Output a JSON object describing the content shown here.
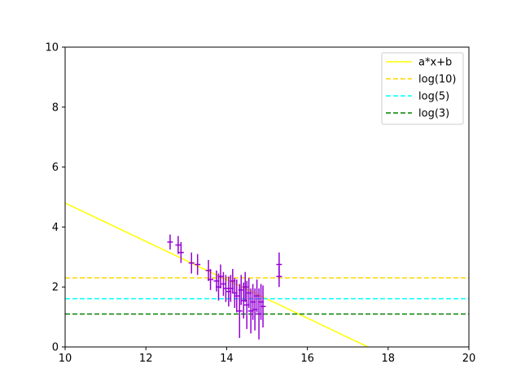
{
  "chart_data": {
    "type": "scatter",
    "xlim": [
      10,
      20
    ],
    "ylim": [
      0,
      10
    ],
    "x_ticks": [
      10,
      12,
      14,
      16,
      18,
      20
    ],
    "y_ticks": [
      0,
      2,
      4,
      6,
      8,
      10
    ],
    "grid": false,
    "legend_position": "top-right",
    "colors": {
      "points": "#9400d3",
      "fit": "#ffff00",
      "log10": "#ffd700",
      "log5": "#00ffff",
      "log3": "#008000"
    },
    "legend": [
      {
        "key": "fit",
        "label": "a*x+b",
        "style": "solid"
      },
      {
        "key": "log10",
        "label": "log(10)",
        "style": "dashed"
      },
      {
        "key": "log5",
        "label": "log(5)",
        "style": "dashed"
      },
      {
        "key": "log3",
        "label": "log(3)",
        "style": "dashed"
      }
    ],
    "fit_line": {
      "slope": -0.64,
      "intercept": 11.2
    },
    "hlines": [
      {
        "key": "log10",
        "y": 2.3026
      },
      {
        "key": "log5",
        "y": 1.6094
      },
      {
        "key": "log3",
        "y": 1.0986
      }
    ],
    "points": [
      {
        "x": 12.6,
        "y": 3.5,
        "xerr": 0.07,
        "yerr": 0.25
      },
      {
        "x": 12.8,
        "y": 3.4,
        "xerr": 0.07,
        "yerr": 0.3
      },
      {
        "x": 12.87,
        "y": 3.15,
        "xerr": 0.07,
        "yerr": 0.35
      },
      {
        "x": 13.13,
        "y": 2.8,
        "xerr": 0.07,
        "yerr": 0.35
      },
      {
        "x": 13.28,
        "y": 2.75,
        "xerr": 0.07,
        "yerr": 0.35
      },
      {
        "x": 13.55,
        "y": 2.55,
        "xerr": 0.07,
        "yerr": 0.35
      },
      {
        "x": 13.6,
        "y": 2.25,
        "xerr": 0.07,
        "yerr": 0.35
      },
      {
        "x": 13.75,
        "y": 2.2,
        "xerr": 0.07,
        "yerr": 0.35
      },
      {
        "x": 13.8,
        "y": 2.0,
        "xerr": 0.07,
        "yerr": 0.45
      },
      {
        "x": 13.85,
        "y": 2.35,
        "xerr": 0.07,
        "yerr": 0.4
      },
      {
        "x": 13.92,
        "y": 2.1,
        "xerr": 0.07,
        "yerr": 0.4
      },
      {
        "x": 13.98,
        "y": 1.95,
        "xerr": 0.07,
        "yerr": 0.45
      },
      {
        "x": 14.05,
        "y": 1.85,
        "xerr": 0.07,
        "yerr": 0.5
      },
      {
        "x": 14.1,
        "y": 1.95,
        "xerr": 0.07,
        "yerr": 0.45
      },
      {
        "x": 14.15,
        "y": 2.2,
        "xerr": 0.07,
        "yerr": 0.4
      },
      {
        "x": 14.2,
        "y": 1.8,
        "xerr": 0.07,
        "yerr": 0.5
      },
      {
        "x": 14.25,
        "y": 1.7,
        "xerr": 0.07,
        "yerr": 0.55
      },
      {
        "x": 14.32,
        "y": 1.2,
        "xerr": 0.07,
        "yerr": 0.9
      },
      {
        "x": 14.36,
        "y": 1.9,
        "xerr": 0.07,
        "yerr": 0.5
      },
      {
        "x": 14.42,
        "y": 1.55,
        "xerr": 0.07,
        "yerr": 0.6
      },
      {
        "x": 14.46,
        "y": 2.0,
        "xerr": 0.07,
        "yerr": 0.5
      },
      {
        "x": 14.5,
        "y": 1.4,
        "xerr": 0.07,
        "yerr": 0.8
      },
      {
        "x": 14.55,
        "y": 1.8,
        "xerr": 0.07,
        "yerr": 0.5
      },
      {
        "x": 14.6,
        "y": 1.2,
        "xerr": 0.07,
        "yerr": 0.75
      },
      {
        "x": 14.65,
        "y": 1.5,
        "xerr": 0.07,
        "yerr": 0.6
      },
      {
        "x": 14.7,
        "y": 1.25,
        "xerr": 0.07,
        "yerr": 0.7
      },
      {
        "x": 14.75,
        "y": 1.7,
        "xerr": 0.07,
        "yerr": 0.55
      },
      {
        "x": 14.8,
        "y": 1.1,
        "xerr": 0.07,
        "yerr": 0.85
      },
      {
        "x": 14.85,
        "y": 1.5,
        "xerr": 0.07,
        "yerr": 0.6
      },
      {
        "x": 14.9,
        "y": 1.35,
        "xerr": 0.07,
        "yerr": 0.7
      },
      {
        "x": 15.3,
        "y": 2.75,
        "xerr": 0.07,
        "yerr": 0.4
      },
      {
        "x": 15.3,
        "y": 2.35,
        "xerr": 0.07,
        "yerr": 0.35
      }
    ]
  }
}
